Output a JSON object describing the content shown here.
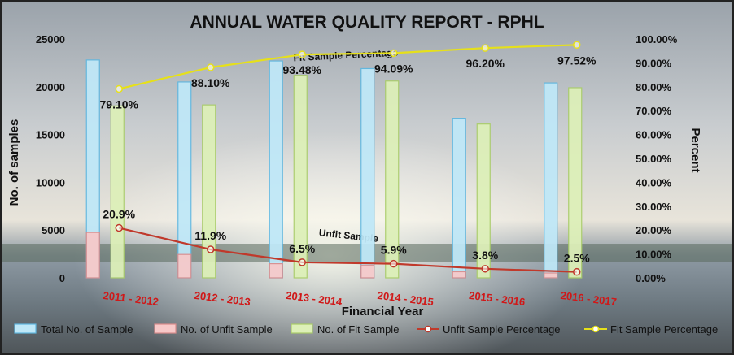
{
  "colors": {
    "total_fill": "#BFE8F8",
    "total_stroke": "#5FB7E0",
    "unfit_fill": "#F7C9C9",
    "unfit_stroke": "#D98C8C",
    "fit_fill": "#DDF0B8",
    "fit_stroke": "#A9CC68",
    "unfit_line": "#C0392B",
    "fit_line": "#E6E01A",
    "axis_text": "#111111",
    "category_text": "#D01818"
  },
  "chart_data": {
    "type": "bar",
    "title": "ANNUAL WATER QUALITY REPORT - RPHL",
    "xlabel": "Financial Year",
    "ylabel": "No. of samples",
    "y2label": "Percent",
    "categories": [
      "2011 - 2012",
      "2012 - 2013",
      "2013 - 2014",
      "2014 - 2015",
      "2015 - 2016",
      "2016 - 2017"
    ],
    "ylim": [
      0,
      25000
    ],
    "yticks": [
      "0",
      "5000",
      "10000",
      "15000",
      "20000",
      "25000"
    ],
    "y2lim": [
      0,
      100
    ],
    "y2ticks": [
      "0.00%",
      "10.00%",
      "20.00%",
      "30.00%",
      "40.00%",
      "50.00%",
      "60.00%",
      "70.00%",
      "80.00%",
      "90.00%",
      "100.00%"
    ],
    "grid": false,
    "legend_position": "bottom",
    "series": [
      {
        "name": "Total No. of Sample",
        "type": "bar",
        "axis": "left",
        "values": [
          22800,
          20500,
          22700,
          21900,
          16700,
          20400
        ]
      },
      {
        "name": "No. of Unfit Sample",
        "type": "bar",
        "axis": "left",
        "values": [
          4750,
          2450,
          1480,
          1300,
          640,
          510
        ]
      },
      {
        "name": "No. of Fit Sample",
        "type": "bar",
        "axis": "left",
        "values": [
          18000,
          18100,
          21200,
          20600,
          16100,
          19900
        ]
      },
      {
        "name": "Unfit Sample Percentage",
        "type": "line",
        "axis": "right",
        "values": [
          20.9,
          11.9,
          6.5,
          5.9,
          3.8,
          2.5
        ],
        "labels": [
          "20.9%",
          "11.9%",
          "6.5%",
          "5.9%",
          "3.8%",
          "2.5%"
        ]
      },
      {
        "name": "Fit Sample Percentage",
        "type": "line",
        "axis": "right",
        "values": [
          79.1,
          88.1,
          93.48,
          94.09,
          96.2,
          97.52
        ],
        "labels": [
          "79.10%",
          "88.10%",
          "93.48%",
          "94.09%",
          "96.20%",
          "97.52%"
        ]
      }
    ],
    "annotations": {
      "fit_line_label": "Fit Sample Percentage",
      "unfit_line_label": "Unfit Sample"
    }
  }
}
